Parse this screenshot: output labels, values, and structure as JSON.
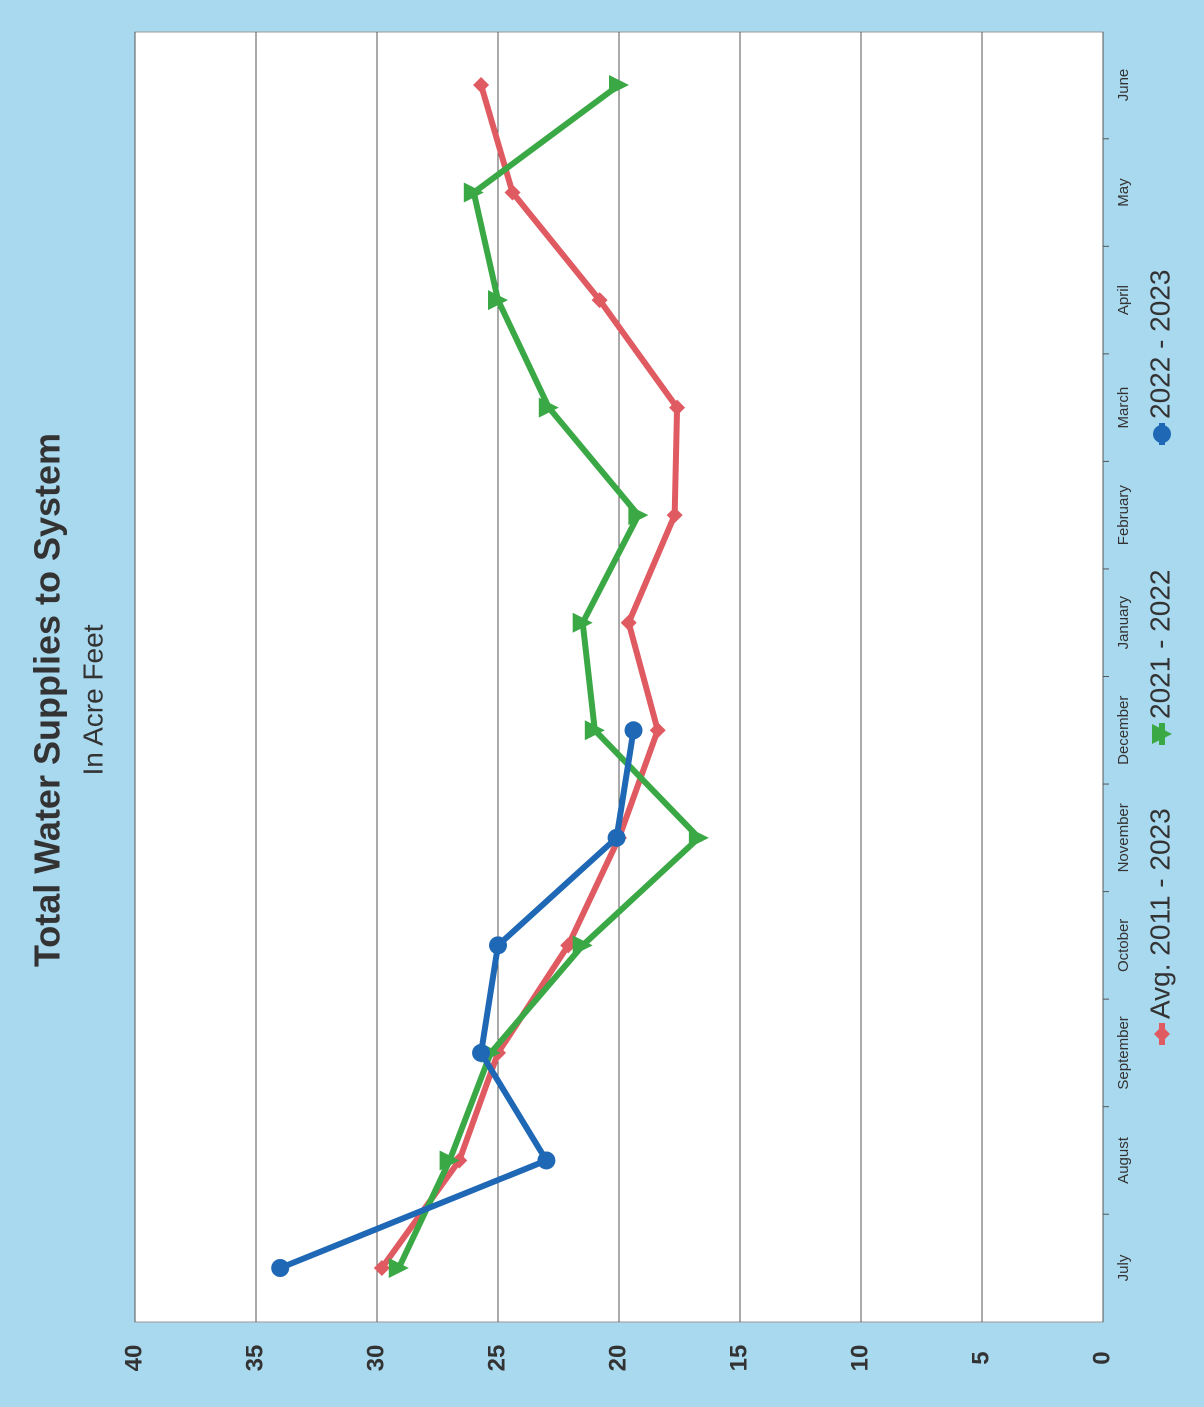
{
  "chart_data": {
    "type": "line",
    "title": "Total Water Supplies to System",
    "subtitle": "In Acre Feet",
    "categories": [
      "July",
      "August",
      "September",
      "October",
      "November",
      "December",
      "January",
      "February",
      "March",
      "April",
      "May",
      "June"
    ],
    "series": [
      {
        "name": "Avg. 2011 - 2023",
        "color": "#e05a62",
        "marker": "diamond",
        "values": [
          29.8,
          26.6,
          25.0,
          22.1,
          20.0,
          18.4,
          19.6,
          17.7,
          17.6,
          20.8,
          24.4,
          25.7
        ]
      },
      {
        "name": "2021 - 2022",
        "color": "#3aa845",
        "marker": "triangle",
        "values": [
          29.1,
          27.0,
          25.3,
          21.5,
          16.7,
          21.0,
          21.5,
          19.2,
          22.9,
          25.0,
          26.0,
          20.0
        ]
      },
      {
        "name": "2022 - 2023",
        "color": "#1f68b5",
        "marker": "circle",
        "values": [
          34.0,
          23.0,
          25.7,
          25.0,
          20.1,
          19.4,
          null,
          null,
          null,
          null,
          null,
          null
        ]
      }
    ],
    "ylim": [
      0,
      40
    ],
    "yticks": [
      0,
      5,
      10,
      15,
      20,
      25,
      30,
      35,
      40
    ],
    "grid": true,
    "legend": "bottom"
  }
}
